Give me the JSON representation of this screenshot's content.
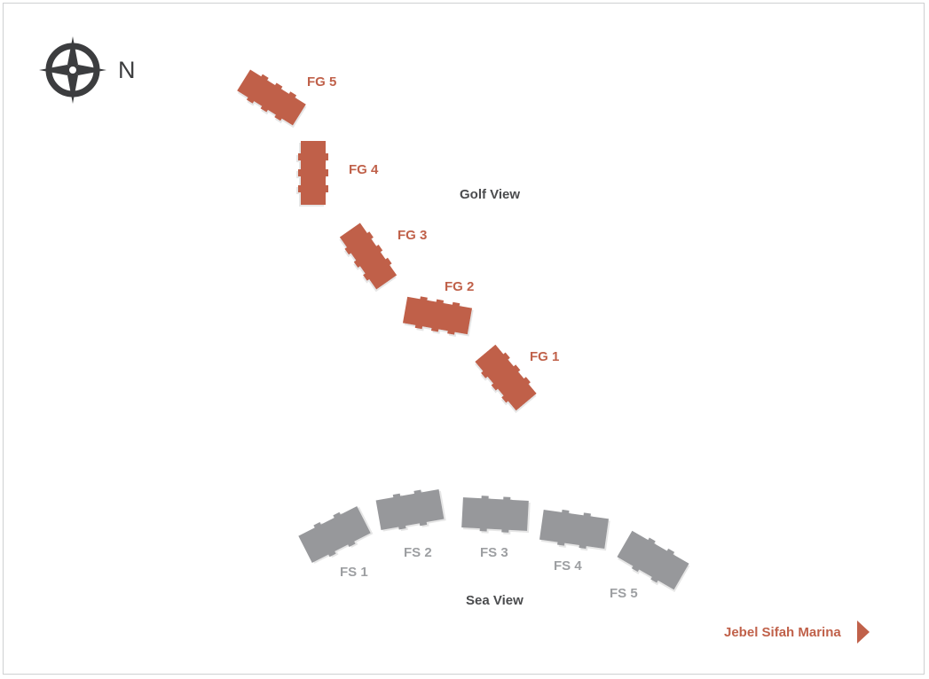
{
  "compass": {
    "icon": "compass-icon",
    "north_label": "N"
  },
  "golf_view": {
    "zone_label": "Golf View",
    "color": "#c0614a",
    "buildings": [
      {
        "id": "fg5",
        "label": "FG 5"
      },
      {
        "id": "fg4",
        "label": "FG 4"
      },
      {
        "id": "fg3",
        "label": "FG 3"
      },
      {
        "id": "fg2",
        "label": "FG 2"
      },
      {
        "id": "fg1",
        "label": "FG 1"
      }
    ]
  },
  "sea_view": {
    "zone_label": "Sea View",
    "color": "#97989b",
    "buildings": [
      {
        "id": "fs1",
        "label": "FS 1"
      },
      {
        "id": "fs2",
        "label": "FS 2"
      },
      {
        "id": "fs3",
        "label": "FS 3"
      },
      {
        "id": "fs4",
        "label": "FS 4"
      },
      {
        "id": "fs5",
        "label": "FS 5"
      }
    ]
  },
  "marina_link": {
    "label": "Jebel Sifah Marina",
    "icon": "arrow-right-icon",
    "color": "#c0614a"
  }
}
